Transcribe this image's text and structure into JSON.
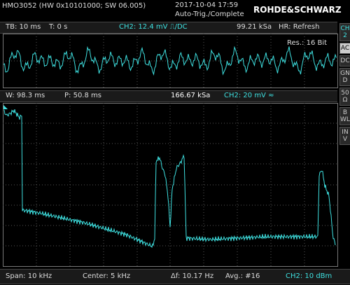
{
  "header": {
    "model": "HMO3052 (HW 0x10101000; SW 06.005)",
    "datetime": "2017-10-04 17:59",
    "status": "Auto-Trig./Complete",
    "brand": "ROHDE&SCHWARZ"
  },
  "time_bar": {
    "timebase": "TB: 10 ms",
    "trigger": "T: 0 s",
    "channel": "CH2: 12.4 mV ⎍/DC",
    "sample_rate": "99.21 kSa",
    "mode": "HR: Refresh"
  },
  "upper_plot": {
    "resolution": "Res.: 16 Bit"
  },
  "fft_bar": {
    "window": "W: 98.3 ms",
    "position": "P: 50.8 ms",
    "sample_rate": "166.67 kSa",
    "channel": "CH2: 20 mV ≈"
  },
  "bottom_bar": {
    "span": "Span: 10 kHz",
    "center": "Center: 5 kHz",
    "resolution": "Δf: 10.17 Hz",
    "average": "Avg.: #16",
    "channel": "CH2: 10 dBm"
  },
  "side_panel": [
    "CH2",
    "AC",
    "DC",
    "GND",
    "50 Ω",
    "BWL",
    "INV"
  ]
}
